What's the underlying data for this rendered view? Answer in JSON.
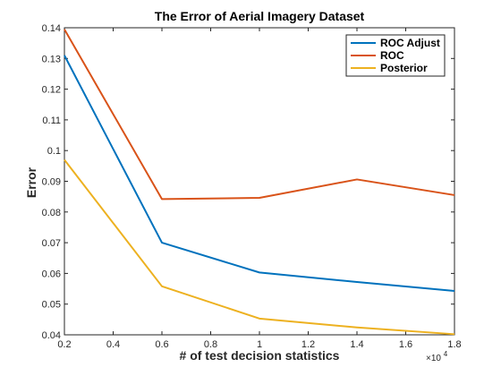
{
  "chart_data": {
    "type": "line",
    "title": "The Error of Aerial Imagery Dataset",
    "xlabel": "# of test decision statistics",
    "ylabel": "Error",
    "x_multiplier_label": "×10",
    "x_multiplier_exp": "4",
    "xlim": [
      0.2,
      1.8
    ],
    "ylim": [
      0.04,
      0.14
    ],
    "xticks": [
      0.2,
      0.4,
      0.6,
      0.8,
      1,
      1.2,
      1.4,
      1.6,
      1.8
    ],
    "xtick_labels": [
      "0.2",
      "0.4",
      "0.6",
      "0.8",
      "1",
      "1.2",
      "1.4",
      "1.6",
      "1.8"
    ],
    "yticks": [
      0.04,
      0.05,
      0.06,
      0.07,
      0.08,
      0.09,
      0.1,
      0.11,
      0.12,
      0.13,
      0.14
    ],
    "ytick_labels": [
      "0.04",
      "0.05",
      "0.06",
      "0.07",
      "0.08",
      "0.09",
      "0.1",
      "0.11",
      "0.12",
      "0.13",
      "0.14"
    ],
    "grid": false,
    "legend_position": "top-right",
    "x": [
      0.2,
      0.6,
      1.0,
      1.4,
      1.8
    ],
    "series": [
      {
        "name": "ROC Adjust",
        "color": "#0072BD",
        "values": [
          0.131,
          0.07,
          0.0603,
          0.0572,
          0.0543
        ]
      },
      {
        "name": "ROC",
        "color": "#D95319",
        "values": [
          0.1395,
          0.0842,
          0.0846,
          0.0906,
          0.0855
        ]
      },
      {
        "name": "Posterior",
        "color": "#EDB120",
        "values": [
          0.097,
          0.0558,
          0.0453,
          0.0424,
          0.0402
        ]
      }
    ]
  }
}
